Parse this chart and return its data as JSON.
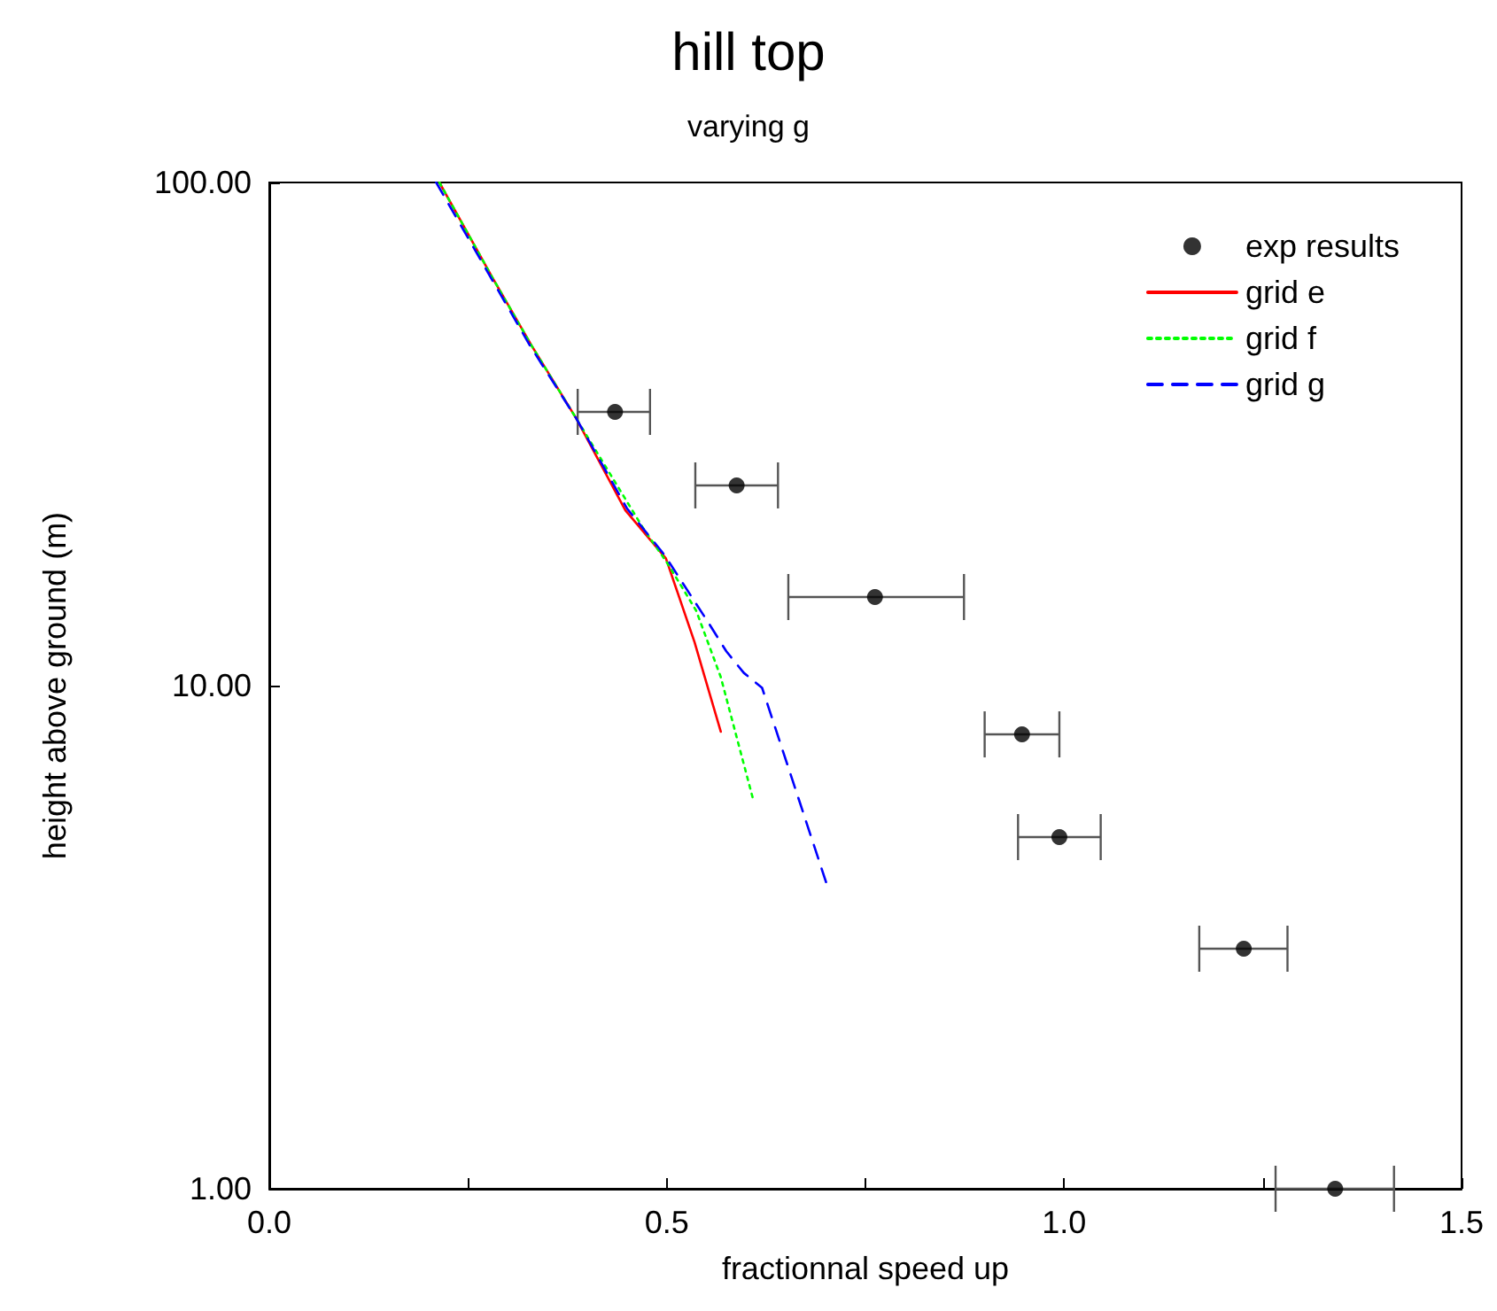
{
  "chart_data": {
    "type": "line",
    "title": "hill top",
    "subtitle": "varying g",
    "xlabel": "fractionnal speed up",
    "ylabel": "height above ground (m)",
    "xlim": [
      0,
      1.5
    ],
    "xticks": [
      {
        "value": 0,
        "label": "0.0"
      },
      {
        "value": 0.25,
        "label": null
      },
      {
        "value": 0.5,
        "label": "0.5"
      },
      {
        "value": 0.75,
        "label": null
      },
      {
        "value": 1,
        "label": "1.0"
      },
      {
        "value": 1.25,
        "label": null
      },
      {
        "value": 1.5,
        "label": "1.5"
      }
    ],
    "ylim": [
      1,
      100
    ],
    "yticks": [
      {
        "value": 1,
        "label": "1.00"
      },
      {
        "value": 10,
        "label": "10.00"
      },
      {
        "value": 100,
        "label": "100.00"
      }
    ],
    "log": "y",
    "grid": false,
    "legend": "top right",
    "series": [
      {
        "name": "exp results",
        "type": "scatter",
        "marker": "circle",
        "color": "#000000",
        "x": [
          0.435,
          0.588,
          0.762,
          0.947,
          0.994,
          1.226,
          1.341
        ],
        "values": [
          35,
          25,
          15,
          8,
          5,
          3,
          1
        ],
        "xerrors": [
          [
            0.388,
            0.479
          ],
          [
            0.536,
            0.64
          ],
          [
            0.653,
            0.874
          ],
          [
            0.9,
            0.994
          ],
          [
            0.942,
            1.046
          ],
          [
            1.17,
            1.281
          ],
          [
            1.266,
            1.415
          ]
        ]
      },
      {
        "name": "grid e",
        "line_style": "solid",
        "color": "#ff0000",
        "x": [
          0.214,
          0.281,
          0.33,
          0.386,
          0.448,
          0.499,
          0.535,
          0.568
        ],
        "values": [
          100,
          64.6,
          47.4,
          34,
          22.3,
          17.9,
          12.2,
          8.1
        ]
      },
      {
        "name": "grid f",
        "line_style": "dotted",
        "color": "#00ff00",
        "x": [
          0.214,
          0.281,
          0.33,
          0.386,
          0.47,
          0.501,
          0.537,
          0.568,
          0.608
        ],
        "values": [
          100,
          64.6,
          47.4,
          34,
          20.6,
          17.5,
          14.1,
          10.4,
          6
        ]
      },
      {
        "name": "grid g",
        "line_style": "dashed",
        "color": "#0000ff",
        "x": [
          0.21,
          0.279,
          0.328,
          0.386,
          0.45,
          0.497,
          0.553,
          0.575,
          0.597,
          0.62,
          0.702
        ],
        "values": [
          100,
          64.6,
          47.4,
          34,
          22.5,
          18.2,
          13.3,
          11.7,
          10.6,
          9.9,
          4
        ]
      }
    ]
  }
}
